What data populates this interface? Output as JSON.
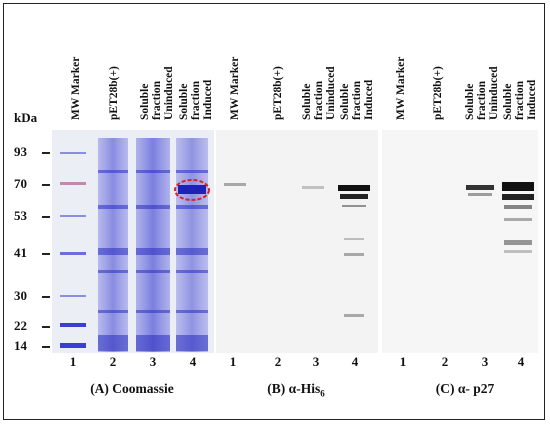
{
  "unit_label": "kDa",
  "markers": [
    {
      "label": "93"
    },
    {
      "label": "70"
    },
    {
      "label": "53"
    },
    {
      "label": "41"
    },
    {
      "label": "30"
    },
    {
      "label": "22"
    },
    {
      "label": "14"
    }
  ],
  "panels": [
    {
      "caption": "(A) Coomassie",
      "lane_headers": [
        "MW Marker",
        "pET28b(+)",
        "Soluble fraction\nUninduced",
        "Soluble fraction\nInduced"
      ],
      "lane_numbers": [
        "1",
        "2",
        "3",
        "4"
      ]
    },
    {
      "caption_main": "(B) α-His",
      "caption_sub": "6",
      "lane_headers": [
        "MW Marker",
        "pET28b(+)",
        "Soluble fraction\nUninduced",
        "Soluble fraction\nInduced"
      ],
      "lane_numbers": [
        "1",
        "2",
        "3",
        "4"
      ]
    },
    {
      "caption": "(C) α- p27",
      "lane_headers": [
        "MW Marker",
        "pET28b(+)",
        "Soluble fraction\nUninduced",
        "Soluble fraction\nInduced"
      ],
      "lane_numbers": [
        "1",
        "2",
        "3",
        "4"
      ]
    }
  ],
  "colors": {
    "coomassie_stain": "#3b3fd0",
    "highlight_circle": "#e02020",
    "western_band": "#111111"
  }
}
